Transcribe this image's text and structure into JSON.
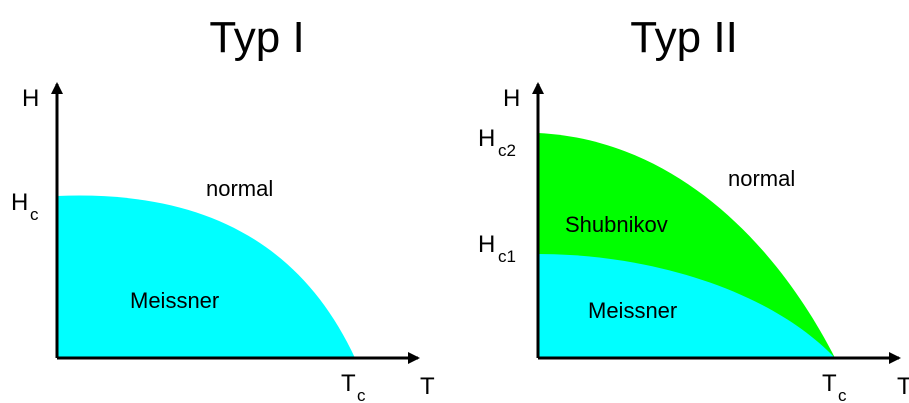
{
  "colors": {
    "meissner": "#00ffff",
    "shubnikov": "#00ff00",
    "axis": "#000000",
    "background": "#ffffff"
  },
  "panel_1": {
    "title": "Typ I",
    "y_axis_label": "H",
    "x_axis_label": "T",
    "field_label_main": "H",
    "field_label_sub": "c",
    "temp_label_main": "T",
    "temp_label_sub": "c",
    "region_normal": "normal",
    "region_meissner": "Meissner"
  },
  "panel_2": {
    "title": "Typ II",
    "y_axis_label": "H",
    "x_axis_label": "T",
    "upper_field_main": "H",
    "upper_field_sub": "c2",
    "lower_field_main": "H",
    "lower_field_sub": "c1",
    "temp_label_main": "T",
    "temp_label_sub": "c",
    "region_normal": "normal",
    "region_shubnikov": "Shubnikov",
    "region_meissner": "Meissner"
  }
}
